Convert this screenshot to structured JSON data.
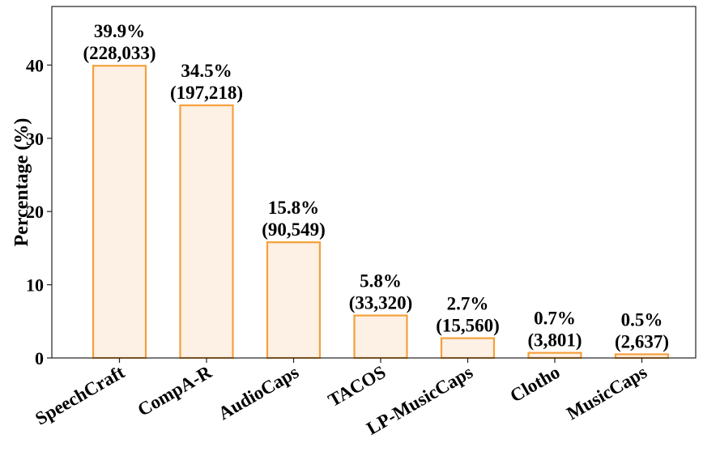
{
  "chart_data": {
    "type": "bar",
    "categories": [
      "SpeechCraft",
      "CompA-R",
      "AudioCaps",
      "TACOS",
      "LP-MusicCaps",
      "Clotho",
      "MusicCaps"
    ],
    "values": [
      39.9,
      34.5,
      15.8,
      5.8,
      2.7,
      0.7,
      0.5
    ],
    "counts": [
      "(228,033)",
      "(197,218)",
      "(90,549)",
      "(33,320)",
      "(15,560)",
      "(3,801)",
      "(2,637)"
    ],
    "value_labels": [
      "39.9%",
      "34.5%",
      "15.8%",
      "5.8%",
      "2.7%",
      "0.7%",
      "0.5%"
    ],
    "ylabel": "Percentage (%)",
    "yticks": [
      0,
      10,
      20,
      30,
      40
    ],
    "ylim": [
      0,
      48
    ],
    "grid": false,
    "bar_fill": "#fdf0e4",
    "bar_stroke": "#f5a03c"
  }
}
